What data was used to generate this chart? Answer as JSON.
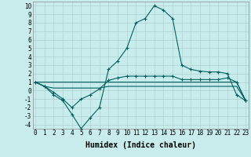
{
  "xlabel": "Humidex (Indice chaleur)",
  "bg_color": "#c8ecec",
  "grid_color": "#b0d0d0",
  "line_color": "#006060",
  "x": [
    0,
    1,
    2,
    3,
    4,
    5,
    6,
    7,
    8,
    9,
    10,
    11,
    12,
    13,
    14,
    15,
    16,
    17,
    18,
    19,
    20,
    21,
    22,
    23
  ],
  "series1": [
    1,
    0.5,
    -0.5,
    -1.2,
    -2.8,
    -4.5,
    -3.2,
    -2.0,
    2.5,
    3.5,
    5.0,
    8.0,
    8.5,
    10.0,
    9.5,
    8.5,
    3.0,
    2.5,
    2.3,
    2.2,
    2.2,
    2.0,
    -0.5,
    -1.2
  ],
  "series2": [
    1,
    0.5,
    -0.2,
    -1.0,
    -2.0,
    -1.0,
    -0.5,
    0.2,
    1.2,
    1.5,
    1.7,
    1.7,
    1.7,
    1.7,
    1.7,
    1.7,
    1.3,
    1.3,
    1.3,
    1.3,
    1.3,
    1.5,
    1.0,
    -1.2
  ],
  "series3": [
    1,
    0.5,
    0.3,
    0.3,
    0.3,
    0.3,
    0.3,
    0.3,
    0.5,
    0.5,
    0.5,
    0.5,
    0.5,
    0.5,
    0.5,
    0.5,
    0.5,
    0.5,
    0.5,
    0.5,
    0.5,
    0.5,
    0.5,
    -1.2
  ],
  "series4": [
    1,
    1,
    1,
    1,
    1,
    1,
    1,
    1,
    1,
    1,
    1,
    1,
    1,
    1,
    1,
    1,
    1,
    1,
    1,
    1,
    1,
    1,
    1,
    -1.2
  ],
  "ylim": [
    -4.5,
    10.5
  ],
  "yticks": [
    -4,
    -3,
    -2,
    -1,
    0,
    1,
    2,
    3,
    4,
    5,
    6,
    7,
    8,
    9,
    10
  ],
  "xticks": [
    0,
    1,
    2,
    3,
    4,
    5,
    6,
    7,
    8,
    9,
    10,
    11,
    12,
    13,
    14,
    15,
    16,
    17,
    18,
    19,
    20,
    21,
    22,
    23
  ],
  "xlabel_fontsize": 7,
  "tick_fontsize": 5.5
}
